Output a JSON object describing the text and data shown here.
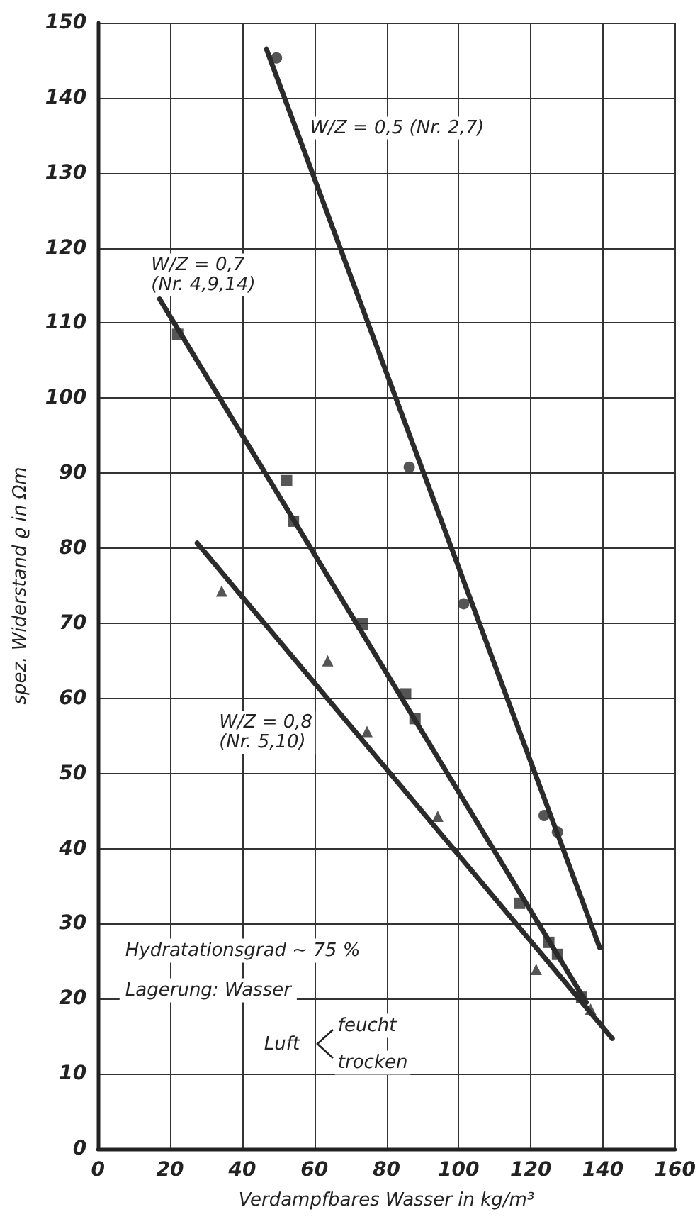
{
  "chart_data": {
    "type": "scatter",
    "xlabel": "Verdampfbares Wasser in kg/m³",
    "ylabel": "spez. Widerstand ϱ in Ωm",
    "xlim": [
      0,
      160
    ],
    "xticks": [
      0,
      20,
      40,
      60,
      80,
      100,
      120,
      140,
      160
    ],
    "ylim": [
      0,
      150
    ],
    "yticks": [
      0,
      10,
      20,
      30,
      40,
      50,
      60,
      70,
      80,
      90,
      100,
      110,
      120,
      130,
      140,
      150
    ],
    "grid": true,
    "line_style": "solid",
    "series": [
      {
        "marker": "circle",
        "color": "#2b2b2b",
        "x": [
          49.5,
          86.3,
          101.4,
          123.7,
          127.4
        ],
        "values": [
          145.3,
          90.8,
          72.6,
          44.4,
          42.2
        ]
      },
      {
        "marker": "square",
        "color": "#2b2b2b",
        "x": [
          22.1,
          52.3,
          54.2,
          73.3,
          85.3,
          87.9,
          116.9,
          125,
          127.4,
          134.1
        ],
        "values": [
          108.5,
          89,
          83.6,
          69.9,
          60.6,
          57.3,
          32.7,
          27.5,
          25.9,
          20.2
        ]
      },
      {
        "marker": "triangle",
        "color": "#2b2b2b",
        "x": [
          34.3,
          63.7,
          74.6,
          94.2,
          121.5,
          136.6
        ],
        "values": [
          74.3,
          65,
          55.6,
          44.3,
          23.9,
          18.6
        ]
      },
      {
        "type": "line",
        "name": "W/Z = 0,5 (Nr. 2,7)",
        "marker": "none",
        "color": "#2b2b2b",
        "x": [
          46.7,
          139.1
        ],
        "values": [
          146.5,
          26.8
        ]
      },
      {
        "type": "line",
        "name": "W/Z = 0,7\n(Nr. 4,9,14)",
        "marker": "none",
        "color": "#2b2b2b",
        "x": [
          17.1,
          135.4
        ],
        "values": [
          113.2,
          19.5
        ]
      },
      {
        "type": "line",
        "name": "W/Z = 0,8\n(Nr. 5,10)",
        "marker": "none",
        "color": "#2b2b2b",
        "x": [
          27.5,
          142.6
        ],
        "values": [
          80.7,
          14.7
        ]
      }
    ],
    "annotations": [
      "Hydratationsgrad ~ 75 %",
      "Lagerung: Wasser",
      "Luft",
      "feucht",
      "trocken"
    ]
  }
}
